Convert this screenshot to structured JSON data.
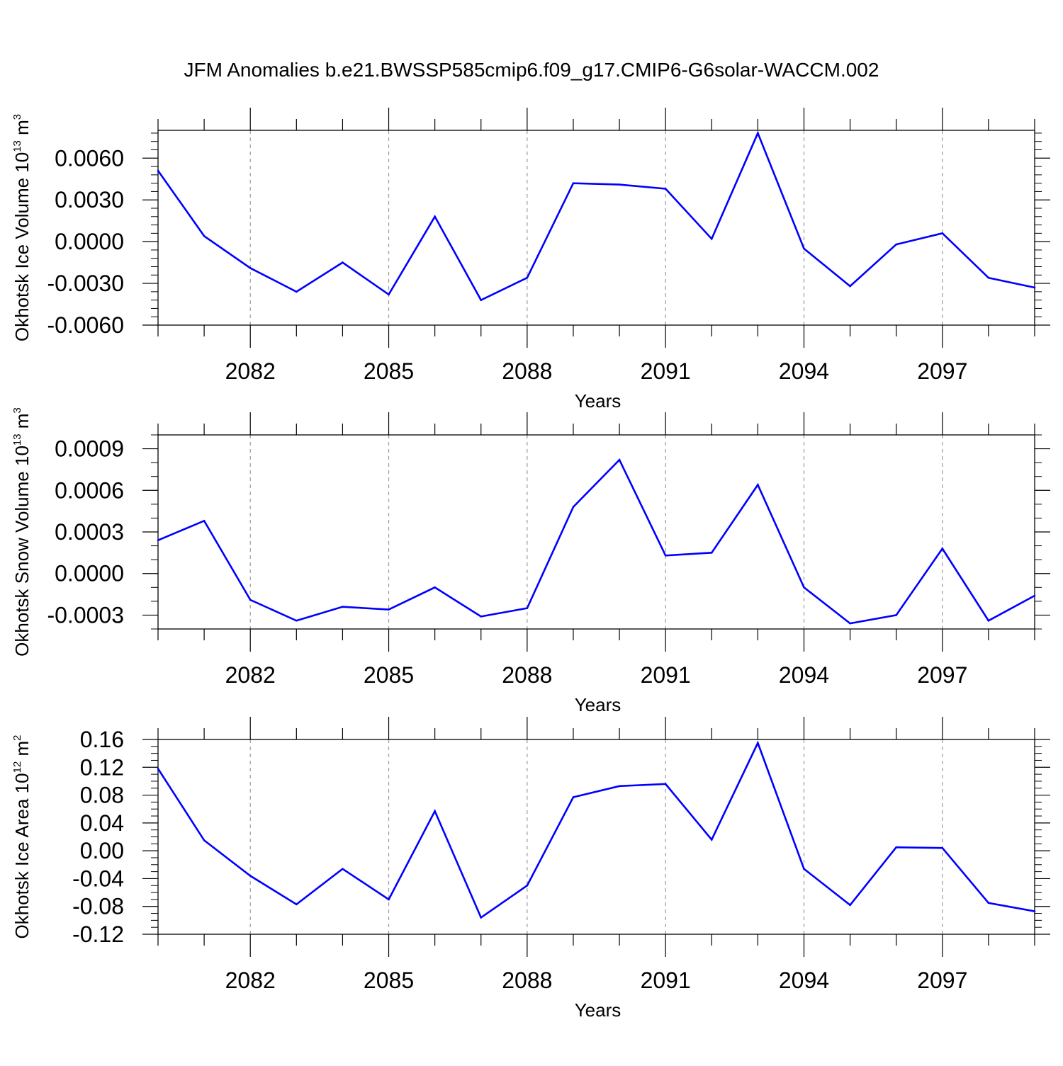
{
  "title": "JFM Anomalies b.e21.BWSSP585cmip6.f09_g17.CMIP6-G6solar-WACCM.002",
  "colors": {
    "line": "#0000ff",
    "axis": "#000000",
    "grid": "#9a9a9a"
  },
  "chart_data": [
    {
      "type": "line",
      "xlabel": "Years",
      "ylabel_parts": [
        "Okhotsk Ice Volume 10",
        "13",
        " m",
        "3"
      ],
      "ylim": [
        -0.006,
        0.008
      ],
      "yticks": [
        -0.006,
        -0.003,
        0.0,
        0.003,
        0.006
      ],
      "ytick_labels": [
        "-0.0060",
        "-0.0030",
        "0.0000",
        "0.0030",
        "0.0060"
      ],
      "yminor_step": 0.0006,
      "xlim": [
        2080,
        2099
      ],
      "xticks": [
        2082,
        2085,
        2088,
        2091,
        2094,
        2097
      ],
      "xtick_labels": [
        "2082",
        "2085",
        "2088",
        "2091",
        "2094",
        "2097"
      ],
      "grid": "vertical dashed at labeled years",
      "series": [
        {
          "x": [
            2080,
            2081,
            2082,
            2083,
            2084,
            2085,
            2086,
            2087,
            2088,
            2089,
            2090,
            2091,
            2092,
            2093,
            2094,
            2095,
            2096,
            2097,
            2098,
            2099
          ],
          "y": [
            0.0051,
            0.0004,
            -0.0019,
            -0.0036,
            -0.0015,
            -0.0038,
            0.0018,
            -0.0042,
            -0.0026,
            0.0042,
            0.0041,
            0.0038,
            0.0002,
            0.0078,
            -0.0005,
            -0.0032,
            -0.0002,
            0.0006,
            -0.0026,
            -0.0033
          ]
        }
      ]
    },
    {
      "type": "line",
      "xlabel": "Years",
      "ylabel_parts": [
        "Okhotsk Snow Volume 10",
        "13",
        " m",
        "3"
      ],
      "ylim": [
        -0.0004,
        0.001
      ],
      "yticks": [
        -0.0003,
        0.0,
        0.0003,
        0.0006,
        0.0009
      ],
      "ytick_labels": [
        "-0.0003",
        "0.0000",
        "0.0003",
        "0.0006",
        "0.0009"
      ],
      "yminor_step": 0.0001,
      "xlim": [
        2080,
        2099
      ],
      "xticks": [
        2082,
        2085,
        2088,
        2091,
        2094,
        2097
      ],
      "xtick_labels": [
        "2082",
        "2085",
        "2088",
        "2091",
        "2094",
        "2097"
      ],
      "grid": "vertical dashed at labeled years",
      "series": [
        {
          "x": [
            2080,
            2081,
            2082,
            2083,
            2084,
            2085,
            2086,
            2087,
            2088,
            2089,
            2090,
            2091,
            2092,
            2093,
            2094,
            2095,
            2096,
            2097,
            2098,
            2099
          ],
          "y": [
            0.00024,
            0.00038,
            -0.00019,
            -0.00034,
            -0.00024,
            -0.00026,
            -0.0001,
            -0.00031,
            -0.00025,
            0.00048,
            0.00082,
            0.00013,
            0.00015,
            0.00064,
            -0.0001,
            -0.00036,
            -0.0003,
            0.00018,
            -0.00034,
            -0.00016
          ]
        }
      ]
    },
    {
      "type": "line",
      "xlabel": "Years",
      "ylabel_parts": [
        "Okhotsk Ice Area 10",
        "12",
        " m",
        "2"
      ],
      "ylim": [
        -0.12,
        0.16
      ],
      "yticks": [
        -0.12,
        -0.08,
        -0.04,
        0.0,
        0.04,
        0.08,
        0.12,
        0.16
      ],
      "ytick_labels": [
        "-0.12",
        "-0.08",
        "-0.04",
        "0.00",
        "0.04",
        "0.08",
        "0.12",
        "0.16"
      ],
      "yminor_step": 0.01,
      "xlim": [
        2080,
        2099
      ],
      "xticks": [
        2082,
        2085,
        2088,
        2091,
        2094,
        2097
      ],
      "xtick_labels": [
        "2082",
        "2085",
        "2088",
        "2091",
        "2094",
        "2097"
      ],
      "grid": "vertical dashed at labeled years",
      "series": [
        {
          "x": [
            2080,
            2081,
            2082,
            2083,
            2084,
            2085,
            2086,
            2087,
            2088,
            2089,
            2090,
            2091,
            2092,
            2093,
            2094,
            2095,
            2096,
            2097,
            2098,
            2099
          ],
          "y": [
            0.118,
            0.015,
            -0.036,
            -0.077,
            -0.026,
            -0.07,
            0.057,
            -0.096,
            -0.05,
            0.077,
            0.093,
            0.096,
            0.016,
            0.155,
            -0.026,
            -0.078,
            0.005,
            0.004,
            -0.075,
            -0.087
          ]
        }
      ]
    }
  ]
}
